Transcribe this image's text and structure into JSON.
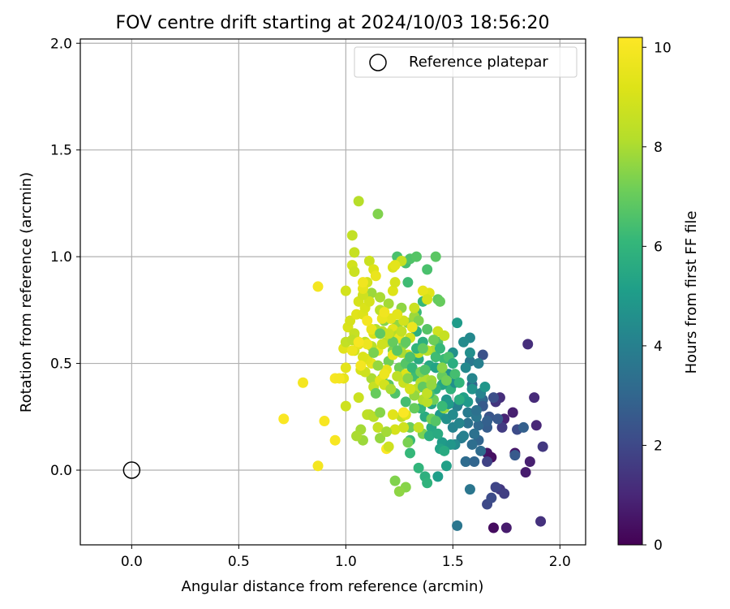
{
  "chart_data": {
    "type": "scatter",
    "title": "FOV centre drift starting at 2024/10/03 18:56:20",
    "xlabel": "Angular distance from reference (arcmin)",
    "ylabel": "Rotation from reference (arcmin)",
    "xlim": [
      -0.24,
      2.12
    ],
    "ylim": [
      -0.35,
      2.02
    ],
    "xticks": [
      0.0,
      0.5,
      1.0,
      1.5,
      2.0
    ],
    "xtick_labels": [
      "0.0",
      "0.5",
      "1.0",
      "1.5",
      "2.0"
    ],
    "yticks": [
      0.0,
      0.5,
      1.0,
      1.5,
      2.0
    ],
    "ytick_labels": [
      "0.0",
      "0.5",
      "1.0",
      "1.5",
      "2.0"
    ],
    "grid": true,
    "legend": {
      "position": "top-right",
      "entries": [
        "Reference platepar"
      ]
    },
    "reference_point": {
      "name": "Reference platepar",
      "x": 0.0,
      "y": 0.0
    },
    "colorbar": {
      "label": "Hours from first FF file",
      "range": [
        0,
        10.2
      ],
      "ticks": [
        0,
        2,
        4,
        6,
        8,
        10
      ],
      "tick_labels": [
        "0",
        "2",
        "4",
        "6",
        "8",
        "10"
      ],
      "colormap": "viridis"
    },
    "points": [
      [
        1.69,
        -0.27,
        0.3
      ],
      [
        1.75,
        -0.27,
        0.7
      ],
      [
        1.66,
        0.08,
        0.5
      ],
      [
        1.68,
        0.06,
        0.4
      ],
      [
        1.78,
        0.27,
        0.8
      ],
      [
        1.74,
        0.24,
        0.9
      ],
      [
        1.79,
        0.08,
        0.6
      ],
      [
        1.84,
        -0.01,
        0.7
      ],
      [
        1.86,
        0.04,
        0.8
      ],
      [
        1.85,
        0.59,
        1.2
      ],
      [
        1.88,
        0.34,
        1.1
      ],
      [
        1.89,
        0.21,
        1.0
      ],
      [
        1.91,
        -0.24,
        1.3
      ],
      [
        1.92,
        0.11,
        1.5
      ],
      [
        1.72,
        0.34,
        1.2
      ],
      [
        1.7,
        0.32,
        1.4
      ],
      [
        1.72,
        -0.09,
        1.5
      ],
      [
        1.74,
        -0.11,
        1.7
      ],
      [
        1.73,
        0.2,
        1.6
      ],
      [
        1.66,
        0.04,
        1.8
      ],
      [
        1.66,
        -0.16,
        2.0
      ],
      [
        1.68,
        -0.13,
        2.1
      ],
      [
        1.7,
        -0.08,
        1.9
      ],
      [
        1.69,
        0.34,
        2.2
      ],
      [
        1.67,
        0.25,
        2.4
      ],
      [
        1.64,
        0.54,
        2.3
      ],
      [
        1.71,
        0.24,
        2.5
      ],
      [
        1.8,
        0.19,
        2.1
      ],
      [
        1.79,
        0.07,
        2.6
      ],
      [
        1.83,
        0.2,
        2.8
      ],
      [
        1.66,
        0.2,
        2.7
      ],
      [
        1.64,
        0.33,
        2.9
      ],
      [
        1.59,
        0.4,
        3.0
      ],
      [
        1.62,
        0.21,
        3.1
      ],
      [
        1.63,
        0.33,
        3.2
      ],
      [
        1.62,
        0.14,
        3.0
      ],
      [
        1.59,
        0.12,
        3.3
      ],
      [
        1.56,
        0.04,
        3.4
      ],
      [
        1.57,
        0.22,
        3.5
      ],
      [
        1.58,
        -0.09,
        3.6
      ],
      [
        1.56,
        0.04,
        3.2
      ],
      [
        1.54,
        0.15,
        3.8
      ],
      [
        1.53,
        0.32,
        3.9
      ],
      [
        1.58,
        0.51,
        3.7
      ],
      [
        1.6,
        0.17,
        3.4
      ],
      [
        1.52,
        0.3,
        4.0
      ],
      [
        1.5,
        0.2,
        4.1
      ],
      [
        1.59,
        0.43,
        4.2
      ],
      [
        1.58,
        0.62,
        4.3
      ],
      [
        1.55,
        0.6,
        4.4
      ],
      [
        1.52,
        -0.26,
        3.6
      ],
      [
        1.58,
        0.55,
        4.5
      ],
      [
        1.5,
        0.55,
        4.6
      ],
      [
        1.48,
        0.45,
        4.7
      ],
      [
        1.47,
        0.33,
        4.8
      ],
      [
        1.44,
        0.26,
        4.9
      ],
      [
        1.45,
        0.13,
        5.0
      ],
      [
        1.43,
        -0.03,
        5.1
      ],
      [
        1.47,
        0.02,
        5.2
      ],
      [
        1.44,
        0.1,
        5.3
      ],
      [
        1.52,
        0.69,
        5.0
      ],
      [
        1.4,
        0.2,
        5.5
      ],
      [
        1.4,
        0.31,
        5.4
      ],
      [
        1.37,
        0.25,
        5.6
      ],
      [
        1.35,
        0.39,
        5.7
      ],
      [
        1.37,
        -0.03,
        5.8
      ],
      [
        1.38,
        -0.06,
        5.9
      ],
      [
        1.34,
        0.01,
        6.0
      ],
      [
        1.3,
        0.08,
        6.1
      ],
      [
        1.3,
        0.14,
        6.2
      ],
      [
        1.34,
        0.52,
        5.6
      ],
      [
        1.33,
        0.65,
        5.8
      ],
      [
        1.36,
        0.79,
        6.1
      ],
      [
        1.33,
        0.74,
        6.2
      ],
      [
        1.29,
        0.88,
        6.3
      ],
      [
        1.28,
        0.97,
        6.4
      ],
      [
        1.24,
        1.0,
        6.5
      ],
      [
        1.3,
        0.99,
        6.6
      ],
      [
        1.33,
        1.0,
        6.7
      ],
      [
        1.38,
        0.94,
        6.5
      ],
      [
        1.42,
        1.0,
        6.8
      ],
      [
        1.43,
        0.8,
        6.9
      ],
      [
        1.44,
        0.79,
        7.0
      ],
      [
        1.41,
        0.33,
        7.1
      ],
      [
        1.4,
        0.24,
        7.2
      ],
      [
        1.36,
        0.17,
        7.3
      ],
      [
        1.3,
        0.2,
        7.1
      ],
      [
        1.29,
        0.13,
        7.3
      ],
      [
        1.23,
        -0.05,
        7.4
      ],
      [
        1.28,
        -0.08,
        7.5
      ],
      [
        1.25,
        -0.1,
        7.6
      ],
      [
        1.16,
        0.15,
        7.7
      ],
      [
        1.08,
        0.14,
        7.8
      ],
      [
        1.07,
        0.19,
        7.9
      ],
      [
        1.05,
        0.16,
        8.0
      ],
      [
        1.12,
        0.43,
        8.0
      ],
      [
        1.11,
        0.26,
        8.1
      ],
      [
        1.15,
        1.2,
        7.4
      ],
      [
        1.06,
        1.26,
        8.2
      ],
      [
        1.03,
        1.1,
        8.5
      ],
      [
        1.04,
        1.02,
        8.6
      ],
      [
        1.11,
        0.98,
        8.7
      ],
      [
        1.03,
        0.96,
        8.9
      ],
      [
        1.12,
        0.83,
        7.8
      ],
      [
        1.16,
        0.81,
        8.0
      ],
      [
        1.16,
        0.75,
        8.3
      ],
      [
        1.2,
        0.78,
        7.9
      ],
      [
        1.18,
        0.7,
        7.5
      ],
      [
        1.26,
        0.76,
        7.6
      ],
      [
        1.24,
        0.68,
        7.7
      ],
      [
        1.27,
        0.59,
        7.3
      ],
      [
        1.22,
        0.56,
        7.4
      ],
      [
        1.25,
        0.48,
        7.1
      ],
      [
        1.2,
        0.51,
        7.2
      ],
      [
        1.17,
        0.43,
        6.9
      ],
      [
        1.2,
        0.4,
        6.8
      ],
      [
        1.23,
        0.36,
        6.6
      ],
      [
        1.28,
        0.32,
        6.4
      ],
      [
        1.32,
        0.44,
        6.3
      ],
      [
        1.35,
        0.29,
        6.0
      ],
      [
        1.43,
        0.6,
        6.6
      ],
      [
        1.46,
        0.52,
        6.2
      ],
      [
        1.48,
        0.53,
        6.5
      ],
      [
        1.45,
        0.44,
        7.0
      ],
      [
        1.49,
        0.38,
        5.9
      ],
      [
        1.46,
        0.29,
        7.8
      ],
      [
        1.43,
        0.65,
        8.8
      ],
      [
        1.46,
        0.63,
        8.6
      ],
      [
        1.41,
        0.56,
        8.0
      ],
      [
        1.38,
        0.56,
        8.3
      ],
      [
        1.34,
        0.55,
        8.5
      ],
      [
        1.3,
        0.62,
        8.9
      ],
      [
        1.29,
        0.54,
        9.0
      ],
      [
        1.28,
        0.45,
        9.2
      ],
      [
        1.22,
        0.66,
        9.3
      ],
      [
        1.21,
        0.71,
        9.4
      ],
      [
        1.17,
        0.71,
        9.6
      ],
      [
        1.13,
        0.64,
        9.1
      ],
      [
        1.15,
        0.56,
        9.7
      ],
      [
        1.12,
        0.5,
        9.5
      ],
      [
        1.1,
        0.52,
        9.3
      ],
      [
        1.08,
        0.53,
        9.1
      ],
      [
        1.04,
        0.56,
        8.9
      ],
      [
        1.07,
        0.47,
        9.0
      ],
      [
        1.09,
        0.46,
        8.8
      ],
      [
        1.13,
        0.39,
        8.6
      ],
      [
        1.16,
        0.42,
        9.4
      ],
      [
        1.19,
        0.47,
        9.5
      ],
      [
        1.22,
        0.54,
        9.6
      ],
      [
        1.18,
        0.4,
        8.9
      ],
      [
        1.27,
        0.41,
        8.7
      ],
      [
        1.33,
        0.38,
        8.4
      ],
      [
        1.35,
        0.41,
        8.2
      ],
      [
        1.37,
        0.43,
        8.1
      ],
      [
        1.4,
        0.42,
        7.9
      ],
      [
        1.36,
        0.33,
        8.1
      ],
      [
        1.32,
        0.35,
        7.7
      ],
      [
        1.38,
        0.32,
        8.3
      ],
      [
        1.26,
        0.25,
        8.5
      ],
      [
        1.28,
        0.26,
        9.3
      ],
      [
        1.23,
        0.19,
        9.0
      ],
      [
        1.19,
        0.1,
        10.1
      ],
      [
        1.2,
        0.11,
        8.8
      ],
      [
        1.15,
        0.2,
        8.6
      ],
      [
        1.1,
        0.26,
        8.4
      ],
      [
        1.13,
        0.25,
        8.2
      ],
      [
        1.06,
        0.34,
        8.7
      ],
      [
        1.0,
        0.3,
        8.8
      ],
      [
        0.99,
        0.43,
        9.5
      ],
      [
        0.95,
        0.43,
        10.0
      ],
      [
        0.97,
        0.43,
        9.9
      ],
      [
        1.0,
        0.48,
        9.4
      ],
      [
        0.99,
        0.57,
        9.3
      ],
      [
        1.0,
        0.6,
        8.5
      ],
      [
        1.01,
        0.67,
        9.1
      ],
      [
        1.02,
        0.7,
        9.0
      ],
      [
        1.04,
        0.62,
        9.2
      ],
      [
        1.06,
        0.59,
        9.4
      ],
      [
        1.05,
        0.73,
        9.3
      ],
      [
        1.06,
        0.79,
        9.0
      ],
      [
        1.08,
        0.73,
        9.2
      ],
      [
        1.09,
        0.76,
        9.1
      ],
      [
        1.11,
        0.79,
        9.0
      ],
      [
        1.08,
        0.82,
        8.8
      ],
      [
        1.1,
        0.88,
        8.9
      ],
      [
        1.08,
        0.85,
        9.5
      ],
      [
        1.13,
        0.94,
        9.2
      ],
      [
        1.04,
        0.93,
        8.7
      ],
      [
        1.0,
        0.84,
        8.9
      ],
      [
        1.04,
        0.64,
        8.6
      ],
      [
        1.03,
        0.61,
        8.4
      ],
      [
        1.09,
        0.6,
        8.5
      ],
      [
        1.12,
        0.58,
        8.3
      ],
      [
        1.14,
        0.66,
        8.1
      ],
      [
        1.17,
        0.65,
        8.3
      ],
      [
        1.19,
        0.6,
        8.4
      ],
      [
        1.24,
        0.63,
        8.2
      ],
      [
        1.26,
        0.55,
        8.0
      ],
      [
        1.29,
        0.69,
        7.6
      ],
      [
        1.32,
        0.72,
        7.8
      ],
      [
        1.34,
        0.7,
        7.4
      ],
      [
        1.32,
        0.76,
        8.7
      ],
      [
        1.27,
        0.7,
        8.9
      ],
      [
        1.24,
        0.73,
        9.4
      ],
      [
        1.22,
        0.84,
        9.2
      ],
      [
        1.23,
        0.88,
        9.0
      ],
      [
        1.22,
        0.95,
        9.1
      ],
      [
        1.26,
        0.98,
        8.6
      ],
      [
        1.31,
        0.67,
        9.7
      ],
      [
        1.25,
        0.62,
        9.6
      ],
      [
        1.39,
        0.83,
        9.3
      ],
      [
        1.22,
        0.6,
        7.0
      ],
      [
        1.24,
        0.56,
        6.8
      ],
      [
        1.28,
        0.5,
        6.7
      ],
      [
        1.31,
        0.48,
        6.1
      ],
      [
        1.33,
        0.57,
        6.0
      ],
      [
        1.36,
        0.6,
        5.8
      ],
      [
        1.39,
        0.49,
        5.5
      ],
      [
        1.42,
        0.48,
        5.3
      ],
      [
        1.45,
        0.4,
        5.4
      ],
      [
        1.42,
        0.38,
        5.8
      ],
      [
        1.39,
        0.36,
        6.4
      ],
      [
        1.36,
        0.39,
        6.9
      ],
      [
        1.32,
        0.29,
        7.0
      ],
      [
        1.39,
        0.16,
        5.7
      ],
      [
        1.47,
        0.24,
        4.6
      ],
      [
        1.5,
        0.26,
        4.4
      ],
      [
        1.53,
        0.22,
        4.2
      ],
      [
        1.55,
        0.16,
        4.0
      ],
      [
        1.57,
        0.27,
        3.8
      ],
      [
        1.61,
        0.25,
        3.6
      ],
      [
        1.63,
        0.09,
        3.2
      ],
      [
        1.6,
        0.04,
        3.0
      ],
      [
        1.64,
        0.3,
        2.6
      ],
      [
        1.66,
        0.23,
        2.8
      ],
      [
        1.62,
        0.5,
        4.0
      ],
      [
        1.56,
        0.48,
        4.3
      ],
      [
        1.51,
        0.41,
        4.6
      ],
      [
        1.48,
        0.31,
        5.0
      ],
      [
        1.43,
        0.17,
        5.6
      ],
      [
        1.45,
        0.3,
        6.2
      ],
      [
        1.42,
        0.23,
        6.7
      ],
      [
        1.47,
        0.42,
        7.2
      ],
      [
        1.45,
        0.48,
        7.5
      ],
      [
        1.51,
        0.45,
        6.4
      ],
      [
        1.53,
        0.41,
        6.0
      ],
      [
        1.55,
        0.34,
        5.2
      ],
      [
        1.57,
        0.32,
        4.9
      ],
      [
        1.59,
        0.38,
        4.7
      ],
      [
        1.63,
        0.36,
        4.1
      ],
      [
        1.65,
        0.39,
        4.8
      ],
      [
        1.61,
        0.28,
        3.4
      ],
      [
        1.53,
        0.33,
        5.7
      ],
      [
        1.51,
        0.12,
        4.4
      ],
      [
        1.49,
        0.12,
        4.8
      ],
      [
        1.46,
        0.09,
        5.6
      ],
      [
        1.27,
        0.27,
        10.1
      ],
      [
        1.16,
        0.64,
        10.0
      ],
      [
        1.1,
        0.59,
        9.7
      ],
      [
        1.12,
        0.66,
        9.6
      ],
      [
        1.07,
        0.49,
        9.9
      ],
      [
        1.06,
        0.6,
        10.0
      ],
      [
        1.03,
        0.56,
        9.7
      ],
      [
        1.1,
        0.7,
        9.9
      ],
      [
        1.18,
        0.74,
        9.8
      ],
      [
        1.18,
        0.45,
        9.7
      ],
      [
        1.21,
        0.38,
        8.0
      ],
      [
        1.24,
        0.44,
        8.4
      ],
      [
        1.22,
        0.26,
        9.3
      ],
      [
        1.27,
        0.2,
        8.8
      ],
      [
        1.34,
        0.2,
        8.6
      ],
      [
        1.38,
        0.36,
        8.5
      ],
      [
        1.3,
        0.38,
        9.0
      ],
      [
        1.29,
        0.43,
        7.5
      ],
      [
        1.35,
        0.46,
        7.3
      ],
      [
        1.4,
        0.4,
        7.7
      ],
      [
        1.37,
        0.47,
        6.6
      ],
      [
        1.42,
        0.53,
        6.3
      ],
      [
        1.44,
        0.57,
        6.1
      ],
      [
        1.5,
        0.5,
        5.7
      ],
      [
        1.41,
        0.61,
        7.1
      ],
      [
        1.38,
        0.66,
        6.7
      ],
      [
        1.36,
        0.57,
        6.9
      ],
      [
        1.3,
        0.53,
        6.5
      ],
      [
        1.28,
        0.6,
        6.9
      ],
      [
        1.26,
        0.65,
        8.5
      ],
      [
        1.2,
        0.64,
        8.7
      ],
      [
        1.17,
        0.59,
        8.8
      ],
      [
        1.15,
        0.49,
        7.7
      ],
      [
        1.13,
        0.55,
        7.3
      ],
      [
        1.14,
        0.36,
        7.0
      ],
      [
        1.16,
        0.27,
        7.5
      ],
      [
        1.19,
        0.18,
        7.9
      ],
      [
        1.16,
        0.64,
        6.9
      ],
      [
        0.8,
        0.41,
        9.9
      ],
      [
        0.71,
        0.24,
        10.1
      ],
      [
        0.9,
        0.23,
        10.0
      ],
      [
        0.87,
        0.86,
        9.9
      ],
      [
        0.95,
        0.14,
        10.0
      ],
      [
        0.87,
        0.02,
        9.9
      ],
      [
        1.08,
        0.88,
        9.8
      ],
      [
        1.14,
        0.91,
        9.6
      ],
      [
        1.23,
        0.96,
        9.4
      ],
      [
        1.36,
        0.84,
        9.5
      ],
      [
        1.38,
        0.8,
        9.0
      ]
    ]
  }
}
